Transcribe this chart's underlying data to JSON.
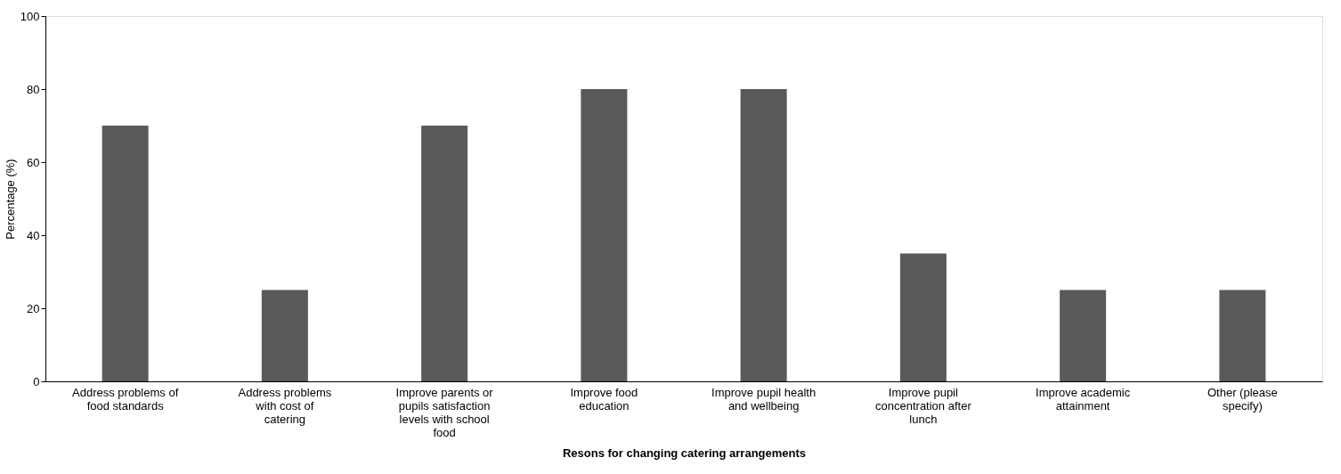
{
  "chart_data": {
    "type": "bar",
    "xlabel": "Resons for changing catering arrangements",
    "ylabel": "Percentage (%)",
    "categories": [
      "Address problems of food standards",
      "Address problems with cost of catering",
      "Improve parents or pupils satisfaction levels  with school food",
      "Improve food education",
      "Improve pupil health and wellbeing",
      "Improve pupil concentration after lunch",
      "Improve academic attainment",
      "Other (please specify)"
    ],
    "values": [
      70,
      25,
      70,
      80,
      80,
      35,
      25,
      25
    ],
    "color": "#595959",
    "ylim": [
      0,
      100
    ],
    "yticks": [
      0,
      20,
      40,
      60,
      80,
      100
    ],
    "grid": false
  }
}
